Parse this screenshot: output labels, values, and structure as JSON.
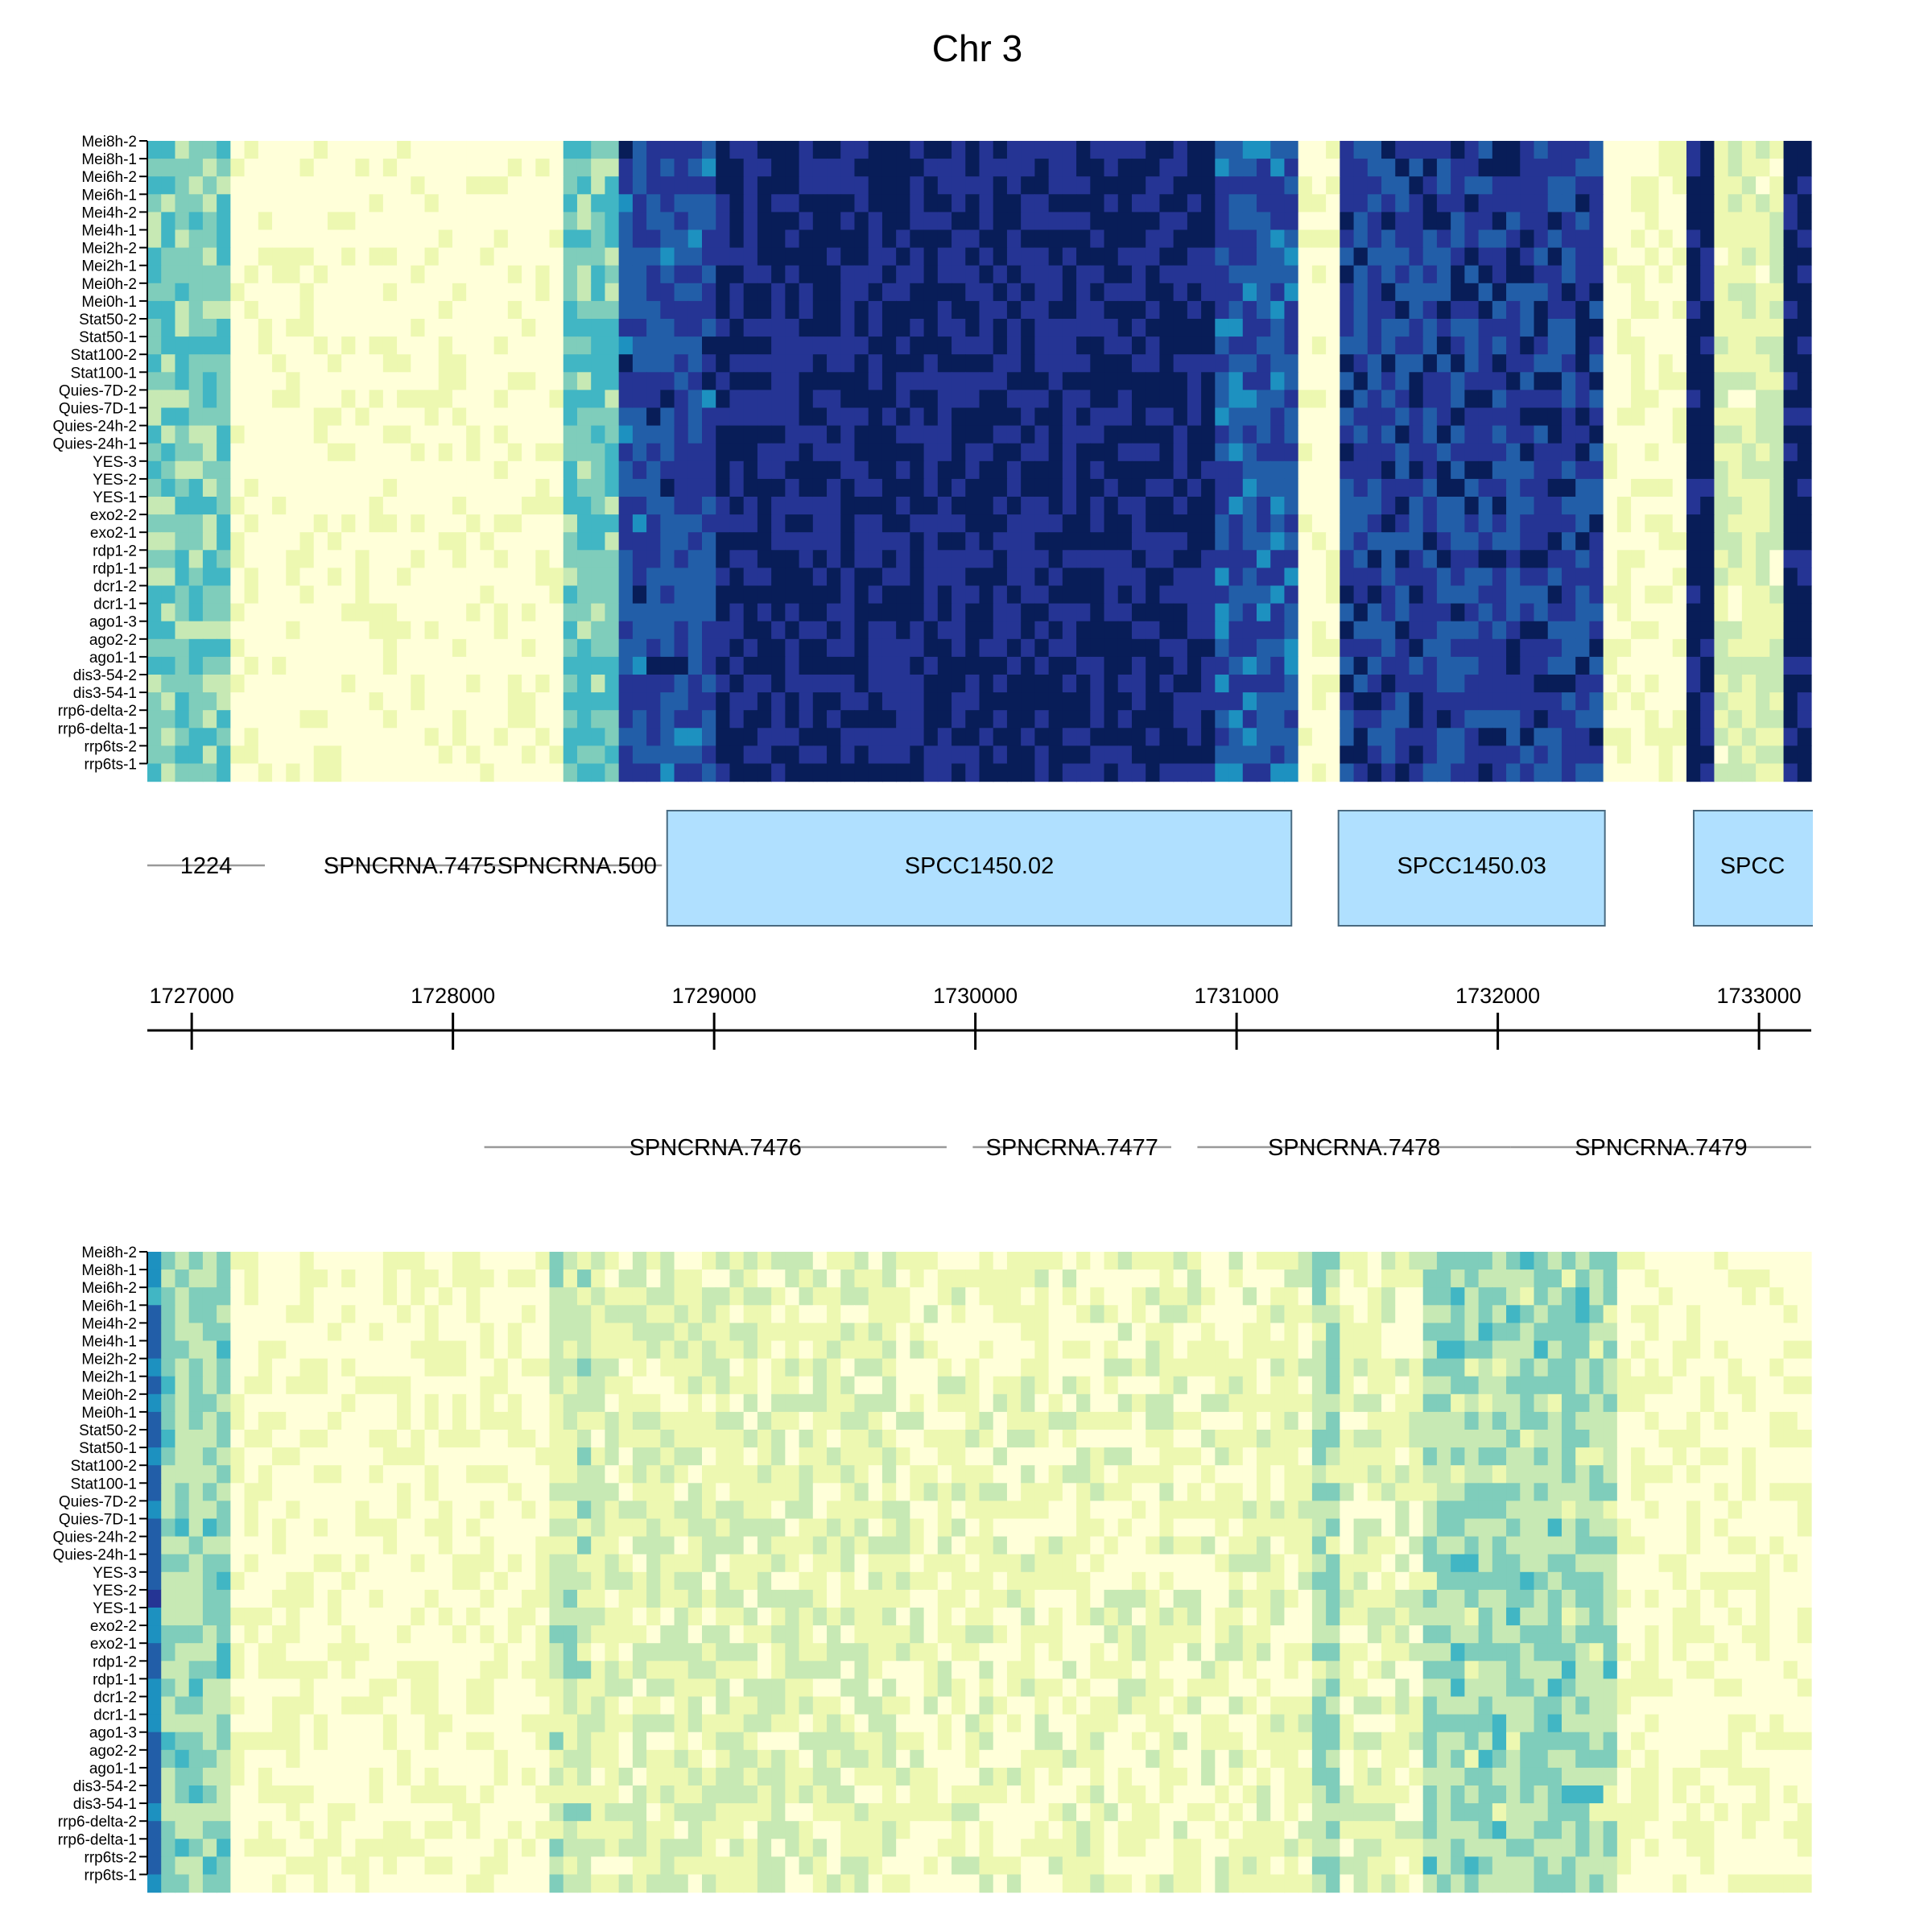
{
  "chart_data": {
    "type": "heatmap",
    "title": "Chr 3",
    "colors": {
      "scale": [
        "#ffffd9",
        "#edf8b1",
        "#c7e9b4",
        "#7fcdbb",
        "#41b6c4",
        "#1d91c0",
        "#225ea8",
        "#253494",
        "#081d58"
      ],
      "gene_fill": "#b0e0ff",
      "gene_stroke": "#4a6a80",
      "ncrna_line": "#999999",
      "axis": "#000000"
    },
    "samples": [
      "Mei8h-2",
      "Mei8h-1",
      "Mei6h-2",
      "Mei6h-1",
      "Mei4h-2",
      "Mei4h-1",
      "Mei2h-2",
      "Mei2h-1",
      "Mei0h-2",
      "Mei0h-1",
      "Stat50-2",
      "Stat50-1",
      "Stat100-2",
      "Stat100-1",
      "Quies-7D-2",
      "Quies-7D-1",
      "Quies-24h-2",
      "Quies-24h-1",
      "YES-3",
      "YES-2",
      "YES-1",
      "exo2-2",
      "exo2-1",
      "rdp1-2",
      "rdp1-1",
      "dcr1-2",
      "dcr1-1",
      "ago1-3",
      "ago2-2",
      "ago1-1",
      "dis3-54-2",
      "dis3-54-1",
      "rrp6-delta-2",
      "rrp6-delta-1",
      "rrp6ts-2",
      "rrp6ts-1"
    ],
    "x_range": [
      1726830,
      1733200
    ],
    "x_axis": {
      "ticks": [
        1727000,
        1728000,
        1729000,
        1730000,
        1731000,
        1732000,
        1733000
      ],
      "tick_labels": [
        "1727000",
        "1728000",
        "1729000",
        "1730000",
        "1731000",
        "1732000",
        "1733000"
      ]
    },
    "features_upper": [
      {
        "label": "1224",
        "start": 1726830,
        "end": 1727280,
        "kind": "ncrna"
      },
      {
        "label": "SPNCRNA.7475",
        "start": 1727520,
        "end": 1728150,
        "kind": "ncrna"
      },
      {
        "label": "SPNCRNA.500",
        "start": 1728150,
        "end": 1728800,
        "kind": "ncrna"
      },
      {
        "label": "SPCC1450.02",
        "start": 1728820,
        "end": 1731210,
        "kind": "gene"
      },
      {
        "label": "SPCC1450.03",
        "start": 1731390,
        "end": 1732410,
        "kind": "gene"
      },
      {
        "label": "SPCC",
        "start": 1732750,
        "end": 1733200,
        "kind": "gene"
      }
    ],
    "features_lower": [
      {
        "label": "SPNCRNA.7476",
        "start": 1728120,
        "end": 1729890,
        "kind": "ncrna"
      },
      {
        "label": "SPNCRNA.7477",
        "start": 1729990,
        "end": 1730750,
        "kind": "ncrna"
      },
      {
        "label": "SPNCRNA.7478",
        "start": 1730850,
        "end": 1732050,
        "kind": "ncrna"
      },
      {
        "label": "SPNCRNA.7479",
        "start": 1732050,
        "end": 1733200,
        "kind": "ncrna"
      }
    ],
    "top_panel": {
      "strand": "forward",
      "segments": [
        {
          "start": 1726830,
          "end": 1727170,
          "level": 3.0
        },
        {
          "start": 1727170,
          "end": 1728400,
          "level": 0.15
        },
        {
          "start": 1728400,
          "end": 1728620,
          "level": 3.2
        },
        {
          "start": 1728620,
          "end": 1729000,
          "level": 6.5
        },
        {
          "start": 1729000,
          "end": 1730900,
          "level": 7.6
        },
        {
          "start": 1730900,
          "end": 1731210,
          "level": 6.2
        },
        {
          "start": 1731210,
          "end": 1731390,
          "level": 0.2
        },
        {
          "start": 1731390,
          "end": 1732380,
          "level": 6.8
        },
        {
          "start": 1732380,
          "end": 1732730,
          "level": 0.3
        },
        {
          "start": 1732730,
          "end": 1732850,
          "level": 8.0
        },
        {
          "start": 1732850,
          "end": 1733090,
          "level": 1.4
        },
        {
          "start": 1733090,
          "end": 1733200,
          "level": 8.0
        }
      ]
    },
    "bottom_panel": {
      "strand": "reverse",
      "segments": [
        {
          "start": 1726830,
          "end": 1726880,
          "level": 5.5
        },
        {
          "start": 1726880,
          "end": 1727130,
          "level": 2.6
        },
        {
          "start": 1727130,
          "end": 1728350,
          "level": 0.3
        },
        {
          "start": 1728350,
          "end": 1728550,
          "level": 1.8
        },
        {
          "start": 1728550,
          "end": 1729700,
          "level": 1.2
        },
        {
          "start": 1729700,
          "end": 1731300,
          "level": 0.7
        },
        {
          "start": 1731300,
          "end": 1731400,
          "level": 2.4
        },
        {
          "start": 1731400,
          "end": 1731700,
          "level": 0.9
        },
        {
          "start": 1731700,
          "end": 1732450,
          "level": 2.5
        },
        {
          "start": 1732450,
          "end": 1733200,
          "level": 0.3
        }
      ]
    }
  }
}
